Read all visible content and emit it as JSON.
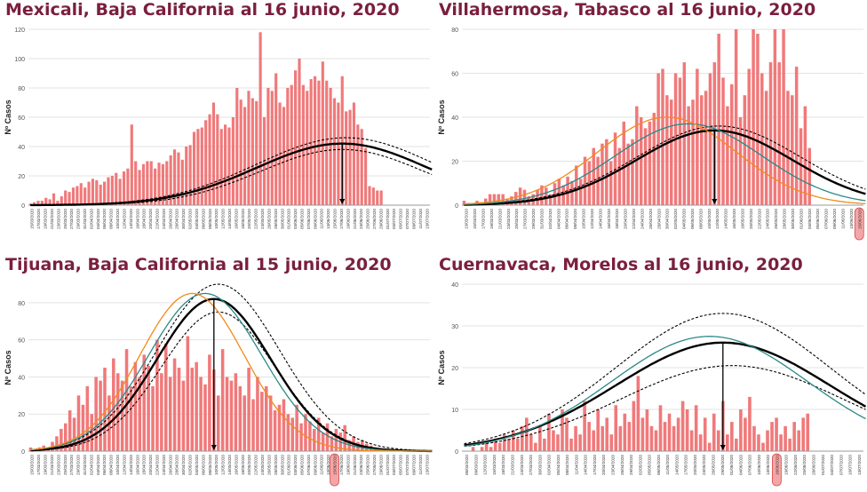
{
  "panels": [
    {
      "title": "Mexicali, Baja California al 16 junio, 2020",
      "chart_data": {
        "type": "bar",
        "ylabel": "Nº Casos",
        "ylim": [
          0,
          120
        ],
        "yticks": [
          0,
          20,
          40,
          60,
          80,
          100,
          120
        ],
        "date_labels": [
          "15/03/2020",
          "17/03/2020",
          "19/03/2020",
          "21/03/2020",
          "23/03/2020",
          "25/03/2020",
          "27/03/2020",
          "29/03/2020",
          "31/03/2020",
          "02/04/2020",
          "04/04/2020",
          "06/04/2020",
          "08/04/2020",
          "10/04/2020",
          "12/04/2020",
          "14/04/2020",
          "16/04/2020",
          "18/04/2020",
          "20/04/2020",
          "22/04/2020",
          "24/04/2020",
          "26/04/2020",
          "28/04/2020",
          "30/04/2020",
          "02/05/2020",
          "04/05/2020",
          "06/05/2020",
          "08/05/2020",
          "10/05/2020",
          "12/05/2020",
          "14/05/2020",
          "16/05/2020",
          "18/05/2020",
          "20/05/2020",
          "22/05/2020",
          "24/05/2020",
          "26/05/2020",
          "28/05/2020",
          "30/05/2020",
          "01/06/2020",
          "03/06/2020",
          "05/06/2020",
          "07/06/2020",
          "09/06/2020",
          "11/06/2020",
          "13/06/2020",
          "15/06/2020",
          "17/06/2020",
          "19/06/2020",
          "21/06/2020",
          "23/06/2020",
          "25/06/2020",
          "27/06/2020",
          "29/06/2020",
          "01/07/2020",
          "03/07/2020",
          "05/07/2020",
          "07/07/2020",
          "09/07/2020",
          "11/07/2020",
          "13/07/2020"
        ],
        "highlight_label": "16/06/2020",
        "values": [
          1,
          2,
          3,
          3,
          5,
          4,
          8,
          3,
          6,
          10,
          9,
          12,
          13,
          15,
          12,
          16,
          18,
          17,
          14,
          16,
          19,
          20,
          22,
          18,
          23,
          25,
          55,
          30,
          24,
          28,
          30,
          30,
          25,
          29,
          28,
          30,
          34,
          38,
          36,
          31,
          40,
          41,
          50,
          52,
          53,
          58,
          62,
          70,
          62,
          52,
          55,
          53,
          60,
          80,
          72,
          67,
          78,
          73,
          71,
          118,
          60,
          80,
          78,
          90,
          70,
          67,
          80,
          82,
          92,
          100,
          82,
          78,
          86,
          88,
          85,
          98,
          85,
          80,
          73,
          70,
          88,
          64,
          65,
          70,
          55,
          52,
          39,
          13,
          12,
          10,
          10
        ],
        "peak_index": 80,
        "models": [
          {
            "name": "main",
            "peak": 42,
            "center": 80,
            "sd": 22
          },
          {
            "name": "upper",
            "peak": 46,
            "center": 81,
            "sd": 23
          },
          {
            "name": "lower",
            "peak": 38,
            "center": 80,
            "sd": 21
          }
        ]
      }
    },
    {
      "title": "Villahermosa, Tabasco al 16 junio, 2020",
      "chart_data": {
        "type": "bar",
        "ylabel": "Nº Casos",
        "ylim": [
          0,
          80
        ],
        "yticks": [
          0,
          20,
          40,
          60,
          80
        ],
        "date_labels": [
          "13/03/2020",
          "15/03/2020",
          "17/03/2020",
          "19/03/2020",
          "21/03/2020",
          "23/03/2020",
          "25/03/2020",
          "27/03/2020",
          "29/03/2020",
          "31/03/2020",
          "02/04/2020",
          "04/04/2020",
          "06/04/2020",
          "08/04/2020",
          "10/04/2020",
          "12/04/2020",
          "14/04/2020",
          "16/04/2020",
          "18/04/2020",
          "20/04/2020",
          "22/04/2020",
          "24/04/2020",
          "26/04/2020",
          "28/04/2020",
          "30/04/2020",
          "02/05/2020",
          "04/05/2020",
          "06/05/2020",
          "08/05/2020",
          "10/05/2020",
          "12/05/2020",
          "14/05/2020",
          "16/05/2020",
          "18/05/2020",
          "20/05/2020",
          "22/05/2020",
          "24/05/2020",
          "26/05/2020",
          "28/05/2020",
          "30/05/2020",
          "01/06/2020",
          "03/06/2020",
          "05/06/2020",
          "07/06/2020",
          "09/06/2020",
          "11/06/2020",
          "13/06/2020",
          "15/06/2020"
        ],
        "highlight_label": "15/06/2020",
        "values": [
          2,
          1,
          1,
          2,
          1,
          3,
          5,
          5,
          5,
          5,
          3,
          4,
          6,
          8,
          7,
          4,
          5,
          7,
          9,
          8,
          5,
          10,
          12,
          9,
          13,
          11,
          18,
          12,
          22,
          20,
          26,
          22,
          28,
          30,
          20,
          33,
          26,
          38,
          28,
          30,
          45,
          40,
          35,
          38,
          42,
          60,
          62,
          50,
          48,
          60,
          58,
          65,
          45,
          48,
          62,
          50,
          52,
          60,
          65,
          78,
          58,
          45,
          55,
          80,
          40,
          50,
          62,
          80,
          78,
          60,
          52,
          65,
          80,
          65,
          80,
          52,
          50,
          63,
          35,
          45,
          26
        ],
        "peak_index": 58,
        "models": [
          {
            "name": "main",
            "peak": 34,
            "center": 58,
            "sd": 18,
            "color": "#000000"
          },
          {
            "name": "upper",
            "peak": 36,
            "center": 59,
            "sd": 19,
            "color": "#000000"
          },
          {
            "name": "teal",
            "peak": 37,
            "center": 52,
            "sd": 17,
            "color": "#2a8a88"
          },
          {
            "name": "orange",
            "peak": 40,
            "center": 47,
            "sd": 16,
            "color": "#f28a1a"
          }
        ]
      }
    },
    {
      "title": "Tijuana, Baja California al 15 junio, 2020",
      "chart_data": {
        "type": "bar",
        "ylabel": "Nº Casos",
        "ylim": [
          0,
          90
        ],
        "yticks": [
          0,
          20,
          40,
          60,
          80
        ],
        "date_labels": [
          "15/03/2020",
          "17/03/2020",
          "19/03/2020",
          "21/03/2020",
          "23/03/2020",
          "25/03/2020",
          "27/03/2020",
          "29/03/2020",
          "31/03/2020",
          "02/04/2020",
          "04/04/2020",
          "06/04/2020",
          "08/04/2020",
          "10/04/2020",
          "12/04/2020",
          "14/04/2020",
          "16/04/2020",
          "18/04/2020",
          "20/04/2020",
          "22/04/2020",
          "24/04/2020",
          "26/04/2020",
          "28/04/2020",
          "30/04/2020",
          "02/05/2020",
          "04/05/2020",
          "06/05/2020",
          "08/05/2020",
          "10/05/2020",
          "12/05/2020",
          "14/05/2020",
          "16/05/2020",
          "18/05/2020",
          "20/05/2020",
          "22/05/2020",
          "24/05/2020",
          "26/05/2020",
          "28/05/2020",
          "30/05/2020",
          "01/06/2020",
          "03/06/2020",
          "05/06/2020",
          "07/06/2020",
          "09/06/2020",
          "11/06/2020",
          "13/06/2020",
          "15/06/2020",
          "17/06/2020",
          "19/06/2020",
          "21/06/2020",
          "23/06/2020",
          "25/06/2020",
          "27/06/2020",
          "29/06/2020",
          "01/07/2020",
          "03/07/2020",
          "05/07/2020",
          "07/07/2020",
          "09/07/2020",
          "11/07/2020",
          "13/07/2020"
        ],
        "highlight_label": "15/06/2020",
        "values": [
          2,
          1,
          2,
          3,
          2,
          5,
          8,
          12,
          15,
          22,
          18,
          30,
          25,
          35,
          20,
          40,
          38,
          45,
          30,
          50,
          42,
          38,
          55,
          35,
          48,
          40,
          52,
          46,
          35,
          60,
          42,
          58,
          40,
          50,
          45,
          38,
          62,
          45,
          48,
          40,
          36,
          52,
          44,
          30,
          55,
          40,
          38,
          42,
          35,
          30,
          45,
          28,
          40,
          32,
          35,
          30,
          22,
          25,
          28,
          20,
          18,
          25,
          15,
          20,
          16,
          12,
          18,
          10,
          15,
          8,
          12,
          10,
          14,
          6,
          8,
          5,
          6,
          4,
          3,
          2
        ],
        "peak_index": 42,
        "models": [
          {
            "name": "main",
            "peak": 82,
            "center": 42,
            "sd": 13,
            "color": "#000000"
          },
          {
            "name": "upper",
            "peak": 90,
            "center": 43,
            "sd": 14,
            "color": "#000000"
          },
          {
            "name": "lower",
            "peak": 75,
            "center": 43,
            "sd": 13,
            "color": "#000000"
          },
          {
            "name": "teal",
            "peak": 85,
            "center": 40,
            "sd": 13,
            "color": "#2a8a88"
          },
          {
            "name": "orange",
            "peak": 85,
            "center": 37,
            "sd": 12,
            "color": "#f28a1a"
          }
        ]
      }
    },
    {
      "title": "Cuernavaca, Morelos al 16 junio, 2020",
      "chart_data": {
        "type": "bar",
        "ylabel": "Nº Casos",
        "ylim": [
          0,
          40
        ],
        "yticks": [
          0,
          10,
          20,
          30,
          40
        ],
        "date_labels": [
          "06/03/2020",
          "09/03/2020",
          "12/03/2020",
          "15/03/2020",
          "18/03/2020",
          "21/03/2020",
          "24/03/2020",
          "27/03/2020",
          "30/03/2020",
          "02/04/2020",
          "05/04/2020",
          "08/04/2020",
          "11/04/2020",
          "14/04/2020",
          "17/04/2020",
          "20/04/2020",
          "23/04/2020",
          "26/04/2020",
          "29/04/2020",
          "02/05/2020",
          "05/05/2020",
          "08/05/2020",
          "11/05/2020",
          "14/05/2020",
          "17/05/2020",
          "20/05/2020",
          "23/05/2020",
          "26/05/2020",
          "29/05/2020",
          "01/06/2020",
          "04/06/2020",
          "07/06/2020",
          "10/06/2020",
          "13/06/2020",
          "16/06/2020",
          "19/06/2020",
          "22/06/2020",
          "25/06/2020",
          "28/06/2020",
          "01/07/2020",
          "04/07/2020",
          "07/07/2020",
          "10/07/2020",
          "13/07/2020"
        ],
        "highlight_label": "16/06/2020",
        "values": [
          0,
          0,
          1,
          0,
          1,
          2,
          1,
          3,
          2,
          4,
          3,
          5,
          3,
          6,
          8,
          4,
          2,
          6,
          3,
          9,
          5,
          4,
          10,
          8,
          3,
          6,
          4,
          12,
          7,
          5,
          10,
          6,
          8,
          4,
          11,
          6,
          9,
          7,
          12,
          18,
          8,
          10,
          6,
          5,
          11,
          7,
          9,
          6,
          8,
          12,
          10,
          5,
          11,
          4,
          8,
          2,
          9,
          5,
          12,
          4,
          7,
          3,
          10,
          8,
          13,
          6,
          4,
          2,
          5,
          7,
          8,
          4,
          6,
          3,
          7,
          5,
          8,
          9
        ],
        "peak_index": 58,
        "models": [
          {
            "name": "main",
            "peak": 26,
            "center": 58,
            "sd": 24,
            "color": "#000000"
          },
          {
            "name": "upper",
            "peak": 33,
            "center": 58,
            "sd": 24,
            "color": "#000000"
          },
          {
            "name": "lower",
            "peak": 20.5,
            "center": 60,
            "sd": 25,
            "color": "#000000"
          },
          {
            "name": "teal",
            "peak": 27.5,
            "center": 55,
            "sd": 22,
            "color": "#2a8a88"
          }
        ]
      }
    }
  ]
}
